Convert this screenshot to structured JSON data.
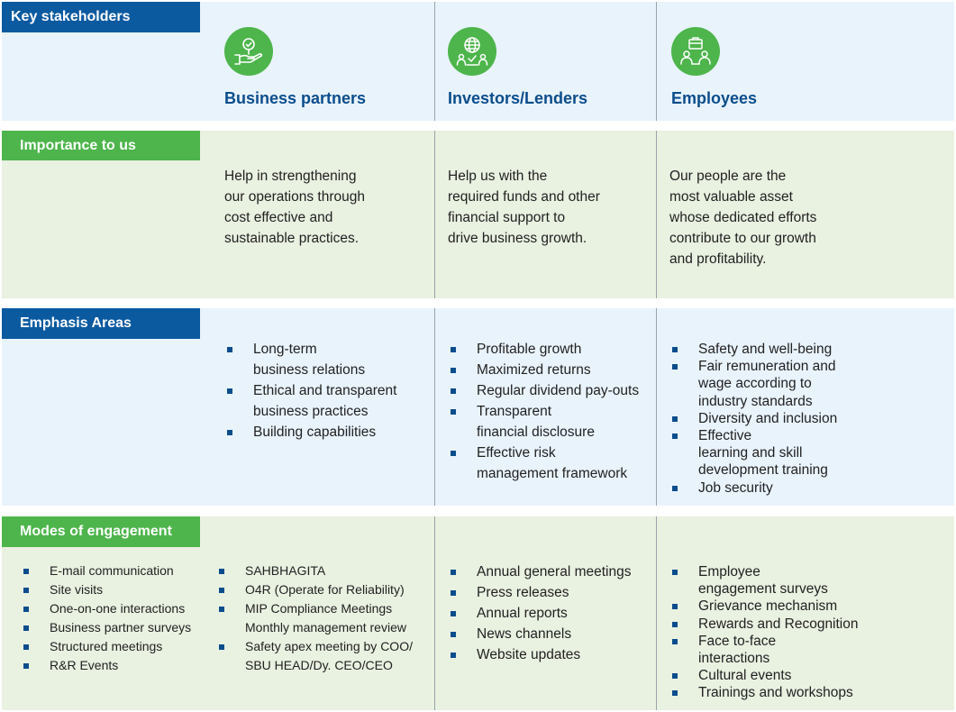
{
  "rows": {
    "key_stakeholders": "Key stakeholders",
    "importance": "Importance to us",
    "emphasis": "Emphasis Areas",
    "modes": "Modes of engagement"
  },
  "stakeholders": [
    {
      "name": "Business partners",
      "icon": "handshake-hand-icon"
    },
    {
      "name": "Investors/Lenders",
      "icon": "globe-people-icon"
    },
    {
      "name": "Employees",
      "icon": "briefcase-people-icon"
    }
  ],
  "importance": [
    "Help in strengthening\nour operations through\ncost effective and\nsustainable practices.",
    "Help us with the\nrequired funds and other\nfinancial support to\ndrive business growth.",
    "Our people are the\nmost valuable asset\nwhose dedicated efforts\ncontribute to our growth\nand profitability."
  ],
  "emphasis": {
    "business_partners": [
      "Long-term\nbusiness relations",
      "Ethical and transparent\nbusiness practices",
      "Building capabilities"
    ],
    "investors": [
      "Profitable growth",
      "Maximized returns",
      "Regular dividend pay-outs",
      "Transparent\nfinancial disclosure",
      "Effective risk\nmanagement framework"
    ],
    "employees": [
      "Safety and well-being",
      "Fair remuneration and\nwage according to\nindustry standards",
      "Diversity and inclusion",
      "Effective\nlearning and skill\ndevelopment training",
      "Job security"
    ]
  },
  "modes": {
    "business_partners_a": [
      "E-mail communication",
      "Site visits",
      "One-on-one interactions",
      "Business partner surveys",
      "Structured meetings",
      "R&R Events"
    ],
    "business_partners_b": [
      "SAHBHAGITA",
      "O4R (Operate for Reliability)",
      "MIP Compliance Meetings\nMonthly management review",
      "Safety apex meeting by COO/\nSBU HEAD/Dy. CEO/CEO"
    ],
    "investors": [
      "Annual general meetings",
      "Press releases",
      "Annual reports",
      "News channels",
      "Website updates"
    ],
    "employees": [
      "Employee\nengagement surveys",
      "Grievance mechanism",
      "Rewards and Recognition",
      "Face to-face\ninteractions",
      "Cultural events",
      "Trainings and workshops"
    ]
  },
  "colors": {
    "blue_tag": "#0b5aa0",
    "green_tag": "#4db54b",
    "blue_band": "#e9f3fc",
    "green_band": "#e9f1e1",
    "title_blue": "#0b4d8c"
  }
}
